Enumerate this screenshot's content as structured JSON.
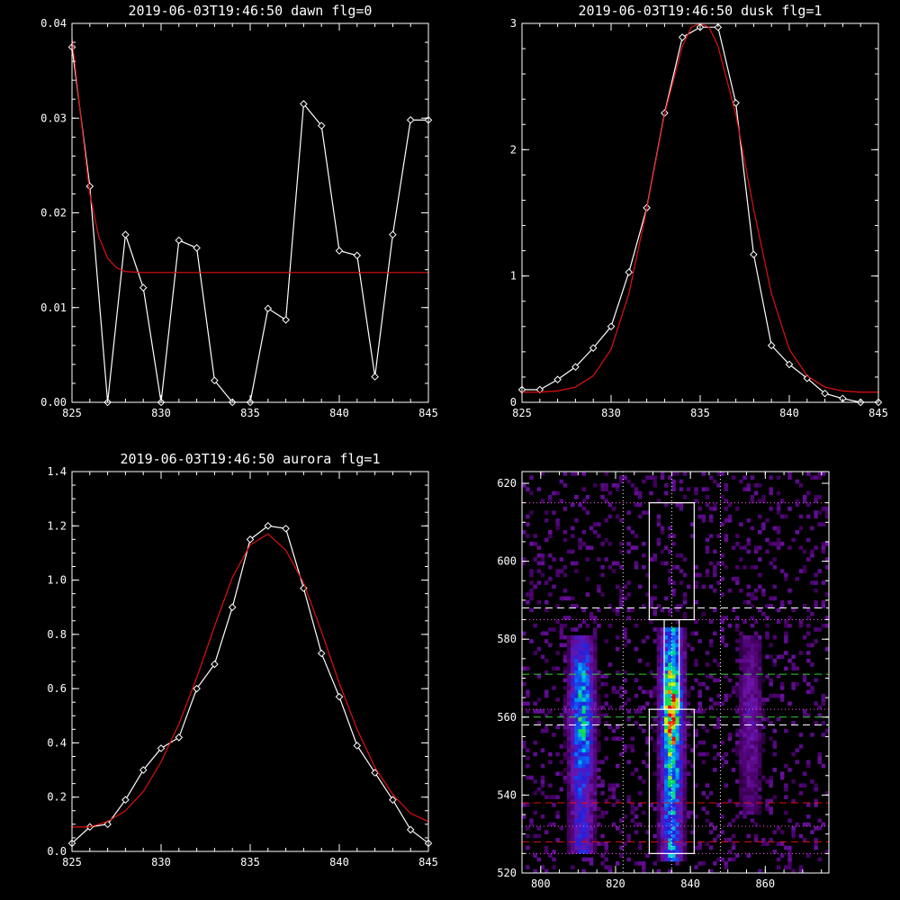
{
  "chart_data": [
    {
      "type": "line",
      "title": "2019-06-03T19:46:50 dawn flg=0",
      "xlim": [
        825,
        845
      ],
      "ylim": [
        0,
        0.04
      ],
      "xticks": [
        825,
        830,
        835,
        840,
        845
      ],
      "yticks": [
        0.0,
        0.01,
        0.02,
        0.03,
        0.04
      ],
      "ytick_labels": [
        "0.00",
        "0.01",
        "0.02",
        "0.03",
        "0.04"
      ],
      "series": [
        {
          "role": "data",
          "color": "#ffffff",
          "marker": "diamond",
          "x": [
            825,
            826,
            827,
            828,
            829,
            830,
            831,
            832,
            833,
            834,
            835,
            836,
            837,
            838,
            839,
            840,
            841,
            842,
            843,
            844,
            845
          ],
          "y": [
            0.0375,
            0.0228,
            0.0,
            0.0177,
            0.0121,
            0.0,
            0.0171,
            0.0163,
            0.0023,
            0.0,
            0.0,
            0.0099,
            0.0087,
            0.0315,
            0.0292,
            0.016,
            0.0155,
            0.0027,
            0.0177,
            0.0298,
            0.0298
          ]
        },
        {
          "role": "fit",
          "color": "#e01010",
          "x": [
            825,
            825.5,
            826,
            826.5,
            827,
            827.5,
            828,
            829,
            830,
            835,
            840,
            845
          ],
          "y": [
            0.0385,
            0.03,
            0.022,
            0.0175,
            0.0152,
            0.0142,
            0.0138,
            0.0137,
            0.0137,
            0.0137,
            0.0137,
            0.0137
          ]
        }
      ]
    },
    {
      "type": "line",
      "title": "2019-06-03T19:46:50 dusk flg=1",
      "xlim": [
        825,
        845
      ],
      "ylim": [
        0,
        3
      ],
      "xticks": [
        825,
        830,
        835,
        840,
        845
      ],
      "yticks": [
        0,
        1,
        2,
        3
      ],
      "ytick_labels": [
        "0",
        "1",
        "2",
        "3"
      ],
      "series": [
        {
          "role": "data",
          "color": "#ffffff",
          "marker": "diamond",
          "x": [
            825,
            826,
            827,
            828,
            829,
            830,
            831,
            832,
            833,
            834,
            835,
            836,
            837,
            838,
            839,
            840,
            841,
            842,
            843,
            844,
            845
          ],
          "y": [
            0.1,
            0.1,
            0.18,
            0.28,
            0.43,
            0.6,
            1.03,
            1.54,
            2.29,
            2.89,
            2.97,
            2.97,
            2.37,
            1.17,
            0.45,
            0.3,
            0.19,
            0.07,
            0.03,
            0.0,
            0.0
          ]
        },
        {
          "role": "fit",
          "color": "#e01010",
          "x": [
            825,
            826,
            827,
            828,
            829,
            830,
            831,
            832,
            833,
            834,
            834.5,
            835,
            835.5,
            836,
            837,
            838,
            839,
            840,
            841,
            842,
            843,
            844,
            845
          ],
          "y": [
            0.08,
            0.08,
            0.09,
            0.12,
            0.21,
            0.42,
            0.86,
            1.53,
            2.28,
            2.82,
            2.97,
            3.0,
            2.97,
            2.82,
            2.28,
            1.53,
            0.86,
            0.42,
            0.21,
            0.12,
            0.09,
            0.08,
            0.08
          ]
        }
      ]
    },
    {
      "type": "line",
      "title": "2019-06-03T19:46:50 aurora flg=1",
      "xlim": [
        825,
        845
      ],
      "ylim": [
        0,
        1.4
      ],
      "xticks": [
        825,
        830,
        835,
        840,
        845
      ],
      "yticks": [
        0.0,
        0.2,
        0.4,
        0.6,
        0.8,
        1.0,
        1.2,
        1.4
      ],
      "ytick_labels": [
        "0.0",
        "0.2",
        "0.4",
        "0.6",
        "0.8",
        "1.0",
        "1.2",
        "1.4"
      ],
      "series": [
        {
          "role": "data",
          "color": "#ffffff",
          "marker": "diamond",
          "x": [
            825,
            826,
            827,
            828,
            829,
            830,
            831,
            832,
            833,
            834,
            835,
            836,
            837,
            838,
            839,
            840,
            841,
            842,
            843,
            844,
            845
          ],
          "y": [
            0.03,
            0.09,
            0.1,
            0.19,
            0.3,
            0.38,
            0.42,
            0.6,
            0.69,
            0.9,
            1.15,
            1.2,
            1.19,
            0.97,
            0.73,
            0.57,
            0.39,
            0.29,
            0.19,
            0.08,
            0.03
          ]
        },
        {
          "role": "fit",
          "color": "#e01010",
          "x": [
            825,
            826,
            827,
            828,
            829,
            830,
            831,
            832,
            833,
            834,
            835,
            836,
            837,
            838,
            839,
            840,
            841,
            842,
            843,
            844,
            845
          ],
          "y": [
            0.09,
            0.09,
            0.11,
            0.15,
            0.22,
            0.33,
            0.47,
            0.64,
            0.83,
            1.01,
            1.13,
            1.17,
            1.11,
            0.99,
            0.81,
            0.62,
            0.45,
            0.31,
            0.21,
            0.14,
            0.11
          ]
        }
      ]
    },
    {
      "type": "heatmap",
      "title": "",
      "xlim": [
        795,
        877
      ],
      "ylim": [
        520,
        623
      ],
      "xticks": [
        800,
        820,
        840,
        860
      ],
      "yticks": [
        520,
        540,
        560,
        580,
        600,
        620
      ],
      "colormap": "rainbow",
      "emission_bands": [
        {
          "x_center": 811,
          "x_width": 8,
          "y_range": [
            525,
            580
          ],
          "peak_y": 560,
          "peak": 0.65
        },
        {
          "x_center": 835,
          "x_width": 7,
          "y_range": [
            523,
            582
          ],
          "peak_y": 560,
          "peak": 1.0
        },
        {
          "x_center": 856,
          "x_width": 8,
          "y_range": [
            535,
            580
          ],
          "peak_y": 560,
          "peak": 0.25
        }
      ],
      "overlays": {
        "boxes": [
          {
            "x": [
              829,
              841
            ],
            "y": [
              585,
              615
            ],
            "color": "#ffffff",
            "style": "solid"
          },
          {
            "x": [
              829,
              841
            ],
            "y": [
              525,
              562
            ],
            "color": "#ffffff",
            "style": "solid"
          },
          {
            "x": [
              833,
              837
            ],
            "y": [
              562,
              585
            ],
            "color": "#ffffff",
            "style": "solid"
          }
        ],
        "hlines": [
          {
            "y": 615,
            "color": "#ff55ff",
            "style": "dotted"
          },
          {
            "y": 588,
            "color": "#ffffff",
            "style": "dashed"
          },
          {
            "y": 585,
            "color": "#ff55ff",
            "style": "dotted"
          },
          {
            "y": 571,
            "color": "#30d030",
            "style": "dashed"
          },
          {
            "y": 562,
            "color": "#ff55ff",
            "style": "dotted"
          },
          {
            "y": 560,
            "color": "#30d030",
            "style": "dashed"
          },
          {
            "y": 558,
            "color": "#ffffff",
            "style": "dashed"
          },
          {
            "y": 538,
            "color": "#e01010",
            "style": "dashed"
          },
          {
            "y": 532,
            "color": "#ff55ff",
            "style": "dotted"
          },
          {
            "y": 528,
            "color": "#e01010",
            "style": "dashed"
          },
          {
            "y": 525,
            "color": "#ff55ff",
            "style": "dotted"
          }
        ],
        "vlines": [
          {
            "x": 822,
            "color": "#ffffff",
            "style": "dotted"
          },
          {
            "x": 835,
            "color": "#ffffff",
            "style": "dotted"
          },
          {
            "x": 848,
            "color": "#ffffff",
            "style": "dotted"
          }
        ]
      }
    }
  ]
}
